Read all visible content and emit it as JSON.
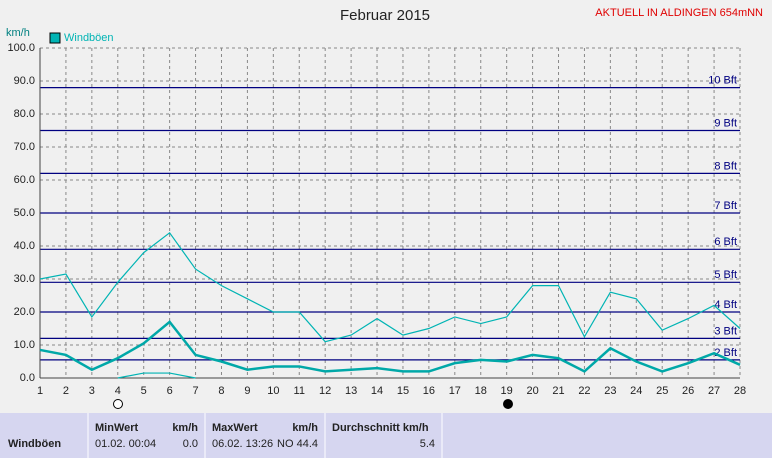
{
  "chart_data": {
    "type": "line",
    "title": "Februar 2015",
    "subtitle": "AKTUELL IN ALDINGEN 654mNN",
    "y_label": "km/h",
    "x": [
      1,
      2,
      3,
      4,
      5,
      6,
      7,
      8,
      9,
      10,
      11,
      12,
      13,
      14,
      15,
      16,
      17,
      18,
      19,
      20,
      21,
      22,
      23,
      24,
      25,
      26,
      27,
      28
    ],
    "xlim": [
      1,
      28
    ],
    "xticks": [
      1,
      2,
      3,
      4,
      5,
      6,
      7,
      8,
      9,
      10,
      11,
      12,
      13,
      14,
      15,
      16,
      17,
      18,
      19,
      20,
      21,
      22,
      23,
      24,
      25,
      26,
      27,
      28
    ],
    "ylim": [
      0,
      100
    ],
    "yticks": [
      {
        "value": 0,
        "label": "0.0"
      },
      {
        "value": 10,
        "label": "10.0"
      },
      {
        "value": 20,
        "label": "20.0"
      },
      {
        "value": 30,
        "label": "30.0"
      },
      {
        "value": 40,
        "label": "40.0"
      },
      {
        "value": 50,
        "label": "50.0"
      },
      {
        "value": 60,
        "label": "60.0"
      },
      {
        "value": 70,
        "label": "70.0"
      },
      {
        "value": 80,
        "label": "80.0"
      },
      {
        "value": 90,
        "label": "90.0"
      },
      {
        "value": 100,
        "label": "100.0"
      }
    ],
    "grid": true,
    "reference_lines": [
      {
        "value": 5.5,
        "label": "2 Bft"
      },
      {
        "value": 12,
        "label": "3 Bft"
      },
      {
        "value": 20,
        "label": "4 Bft"
      },
      {
        "value": 29,
        "label": "5 Bft"
      },
      {
        "value": 39,
        "label": "6 Bft"
      },
      {
        "value": 50,
        "label": "7 Bft"
      },
      {
        "value": 62,
        "label": "8 Bft"
      },
      {
        "value": 75,
        "label": "9 Bft"
      },
      {
        "value": 88,
        "label": "10 Bft"
      }
    ],
    "series": [
      {
        "name": "Windböen",
        "color": "#00b4b4",
        "values": [
          30,
          31.5,
          18.5,
          29,
          38,
          44,
          33,
          28,
          24,
          20,
          20,
          11,
          13,
          18,
          13,
          15,
          18.5,
          16.5,
          18.5,
          28,
          28,
          12.5,
          26,
          24,
          14.5,
          18,
          22,
          15
        ]
      },
      {
        "color": "#00a8a8",
        "values": [
          8.5,
          7,
          2.5,
          6,
          10.5,
          17,
          7,
          5,
          2.5,
          3.5,
          3.5,
          2,
          2.5,
          3,
          2,
          2,
          4.5,
          5.5,
          5,
          7,
          6,
          2,
          9,
          5,
          2,
          4.5,
          7.5,
          4
        ]
      },
      {
        "color": "#00b4b4",
        "values": [
          null,
          null,
          null,
          0,
          1.5,
          1.5,
          0,
          null,
          null,
          null,
          null,
          null,
          null,
          null,
          null,
          null,
          null,
          null,
          null,
          null,
          null,
          null,
          null,
          null,
          null,
          null,
          null,
          null
        ]
      }
    ]
  },
  "table": {
    "row_label": "Windböen",
    "min": {
      "header": "MinWert",
      "unit": "km/h",
      "time": "01.02.  00:04",
      "value": "0.0"
    },
    "max": {
      "header": "MaxWert",
      "unit": "km/h",
      "time": "06.02.  13:26",
      "direction": "NO",
      "value": "44.4"
    },
    "avg": {
      "header": "Durchschnitt km/h",
      "value": "5.4"
    }
  }
}
